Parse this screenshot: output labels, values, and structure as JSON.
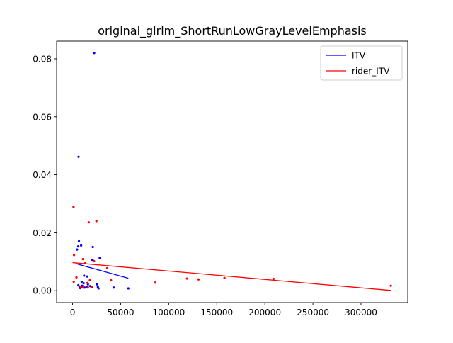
{
  "chart_data": {
    "type": "scatter",
    "title": "original_glrlm_ShortRunLowGrayLevelEmphasis",
    "xlabel": "",
    "ylabel": "",
    "xlim": [
      -16600,
      348600
    ],
    "ylim": [
      -0.0041,
      0.0861
    ],
    "x_ticks": [
      0,
      50000,
      100000,
      150000,
      200000,
      250000,
      300000
    ],
    "x_tick_labels": [
      "0",
      "50000",
      "100000",
      "150000",
      "200000",
      "250000",
      "300000"
    ],
    "y_ticks": [
      0.0,
      0.02,
      0.04,
      0.06,
      0.08
    ],
    "y_tick_labels": [
      "0.00",
      "0.02",
      "0.04",
      "0.06",
      "0.08"
    ],
    "grid": false,
    "legend_position": "top-right",
    "series": [
      {
        "name": "ITV",
        "color": "#0000ff",
        "points": [
          [
            22500,
            0.082
          ],
          [
            6200,
            0.0462
          ],
          [
            6600,
            0.0171
          ],
          [
            5900,
            0.0153
          ],
          [
            8900,
            0.0156
          ],
          [
            4700,
            0.0142
          ],
          [
            21000,
            0.0151
          ],
          [
            28200,
            0.0112
          ],
          [
            20000,
            0.0107
          ],
          [
            21900,
            0.0103
          ],
          [
            12000,
            0.0052
          ],
          [
            15200,
            0.0049
          ],
          [
            9500,
            0.0031
          ],
          [
            11500,
            0.0026
          ],
          [
            16000,
            0.0022
          ],
          [
            6000,
            0.0019
          ],
          [
            25500,
            0.0022
          ],
          [
            7200,
            0.0014
          ],
          [
            10000,
            0.0017
          ],
          [
            12500,
            0.0011
          ],
          [
            14800,
            0.0013
          ],
          [
            18300,
            0.0016
          ],
          [
            19600,
            0.0013
          ],
          [
            26300,
            0.0013
          ],
          [
            27000,
            0.0008
          ],
          [
            42700,
            0.0011
          ],
          [
            58000,
            0.0008
          ],
          [
            8000,
            0.0009
          ],
          [
            9000,
            0.0012
          ]
        ],
        "trend": [
          [
            4000,
            0.0093
          ],
          [
            58000,
            0.0043
          ]
        ]
      },
      {
        "name": "rider_ITV",
        "color": "#ff0000",
        "points": [
          [
            1000,
            0.0289
          ],
          [
            24800,
            0.024
          ],
          [
            16800,
            0.0236
          ],
          [
            1500,
            0.0123
          ],
          [
            10800,
            0.0109
          ],
          [
            22300,
            0.0102
          ],
          [
            12500,
            0.0096
          ],
          [
            36000,
            0.0078
          ],
          [
            4000,
            0.0046
          ],
          [
            40000,
            0.0036
          ],
          [
            1200,
            0.0031
          ],
          [
            15500,
            0.0027
          ],
          [
            18000,
            0.0036
          ],
          [
            86000,
            0.0028
          ],
          [
            119000,
            0.0042
          ],
          [
            131000,
            0.0039
          ],
          [
            158000,
            0.0044
          ],
          [
            209000,
            0.0041
          ],
          [
            331000,
            0.0017
          ],
          [
            11000,
            0.0011
          ],
          [
            20500,
            0.0012
          ],
          [
            8500,
            0.0014
          ],
          [
            16000,
            0.0011
          ]
        ],
        "trend": [
          [
            0,
            0.0097
          ],
          [
            331000,
            0.0001
          ]
        ]
      }
    ]
  }
}
